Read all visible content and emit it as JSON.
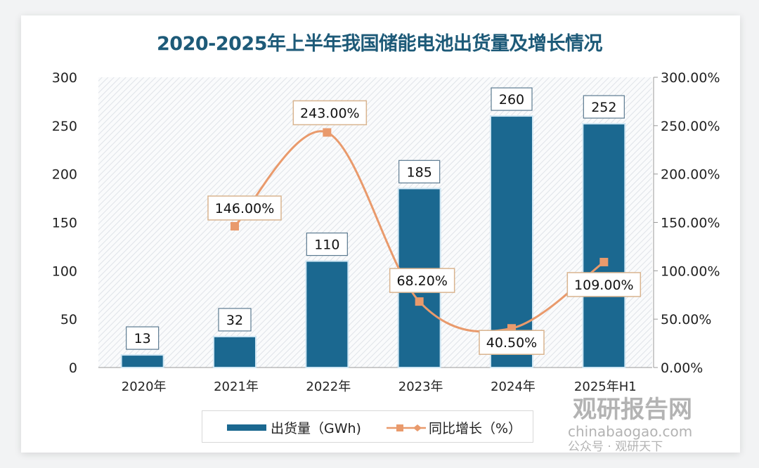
{
  "chart_data": {
    "type": "bar+line",
    "title": "2020-2025年上半年我国储能电池出货量及增长情况",
    "categories": [
      "2020年",
      "2021年",
      "2022年",
      "2023年",
      "2024年",
      "2025年H1"
    ],
    "series": [
      {
        "name": "出货量（GWh)",
        "type": "bar",
        "axis": "left",
        "values": [
          13,
          32,
          110,
          185,
          260,
          252
        ],
        "labels": [
          "13",
          "32",
          "110",
          "185",
          "260",
          "252"
        ],
        "color": "#1b6890"
      },
      {
        "name": "同比增长（%）",
        "type": "line",
        "axis": "right",
        "values": [
          null,
          146.0,
          243.0,
          68.2,
          40.5,
          109.0
        ],
        "labels": [
          null,
          "146.00%",
          "243.00%",
          "68.20%",
          "40.50%",
          "109.00%"
        ],
        "color": "#e99a6c",
        "smooth": true
      }
    ],
    "y_left": {
      "range": [
        0,
        300
      ],
      "ticks": [
        "0",
        "50",
        "100",
        "150",
        "200",
        "250",
        "300"
      ]
    },
    "y_right": {
      "range": [
        0,
        300
      ],
      "ticks": [
        "0.00%",
        "50.00%",
        "100.00%",
        "150.00%",
        "200.00%",
        "250.00%",
        "300.00%"
      ]
    },
    "legend_placement": "bottom",
    "grid": false,
    "plot_background": "diagonal hatch"
  },
  "watermark": {
    "brand": "观研报告网",
    "url": "chinabaogao.com",
    "wechat": "公众号 · 观研天下"
  }
}
